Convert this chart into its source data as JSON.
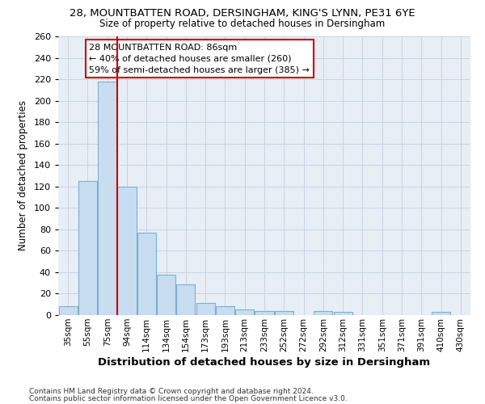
{
  "title1": "28, MOUNTBATTEN ROAD, DERSINGHAM, KING'S LYNN, PE31 6YE",
  "title2": "Size of property relative to detached houses in Dersingham",
  "xlabel": "Distribution of detached houses by size in Dersingham",
  "ylabel": "Number of detached properties",
  "categories": [
    "35sqm",
    "55sqm",
    "75sqm",
    "94sqm",
    "114sqm",
    "134sqm",
    "154sqm",
    "173sqm",
    "193sqm",
    "213sqm",
    "233sqm",
    "252sqm",
    "272sqm",
    "292sqm",
    "312sqm",
    "331sqm",
    "351sqm",
    "371sqm",
    "391sqm",
    "410sqm",
    "430sqm"
  ],
  "values": [
    8,
    125,
    218,
    120,
    77,
    38,
    29,
    11,
    8,
    5,
    4,
    4,
    0,
    4,
    3,
    0,
    0,
    0,
    0,
    3,
    0
  ],
  "bar_color": "#c9ddf0",
  "bar_edge_color": "#7bafd4",
  "grid_color": "#c8d4e3",
  "background_color": "#e8eef5",
  "vline_x": 2.5,
  "vline_color": "#cc0000",
  "annotation_text": "28 MOUNTBATTEN ROAD: 86sqm\n← 40% of detached houses are smaller (260)\n59% of semi-detached houses are larger (385) →",
  "annotation_box_color": "#ffffff",
  "annotation_box_edge": "#cc0000",
  "footer1": "Contains HM Land Registry data © Crown copyright and database right 2024.",
  "footer2": "Contains public sector information licensed under the Open Government Licence v3.0.",
  "ylim": [
    0,
    260
  ],
  "yticks": [
    0,
    20,
    40,
    60,
    80,
    100,
    120,
    140,
    160,
    180,
    200,
    220,
    240,
    260
  ]
}
